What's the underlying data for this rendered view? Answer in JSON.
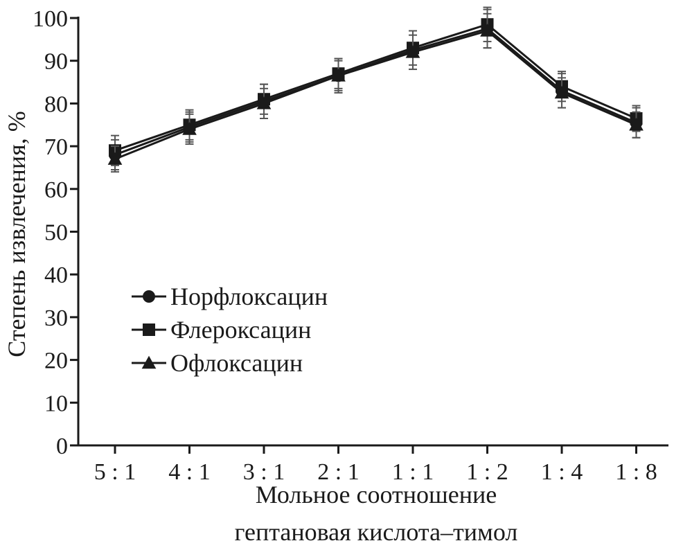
{
  "chart_data": {
    "type": "line",
    "xlabel": "Мольное соотношение",
    "xlabel_line2": "гептановая кислота–тимол",
    "ylabel": "Степень извлечения, %",
    "categories": [
      "5 : 1",
      "4 : 1",
      "3 : 1",
      "2 : 1",
      "1 : 1",
      "1 : 2",
      "1 : 4",
      "1 : 8"
    ],
    "ylim": [
      0,
      100
    ],
    "yticks": [
      0,
      10,
      20,
      30,
      40,
      50,
      60,
      70,
      80,
      90,
      100
    ],
    "grid": false,
    "legend_position": "center-left",
    "series": [
      {
        "name": "Норфлоксацин",
        "marker": "circle",
        "values": [
          68,
          74.5,
          80.5,
          86.5,
          92.5,
          97.5,
          83,
          75.5
        ],
        "error": [
          3.5,
          3.5,
          4,
          4,
          4.5,
          4.5,
          4,
          3.5
        ]
      },
      {
        "name": "Флероксацин",
        "marker": "square",
        "values": [
          69,
          75,
          81,
          87,
          93,
          98.5,
          84,
          76.5
        ],
        "error": [
          3.5,
          3.5,
          3.5,
          3.5,
          4,
          4,
          3.5,
          3
        ]
      },
      {
        "name": "Офлоксацин",
        "marker": "triangle",
        "values": [
          67,
          74,
          80,
          86.5,
          92,
          97,
          82.5,
          75
        ],
        "error": [
          3,
          3.5,
          3.5,
          3.5,
          4,
          4,
          3.5,
          3
        ]
      }
    ],
    "colors": {
      "line": "#1a1a1a",
      "error_bar": "#555555"
    }
  }
}
